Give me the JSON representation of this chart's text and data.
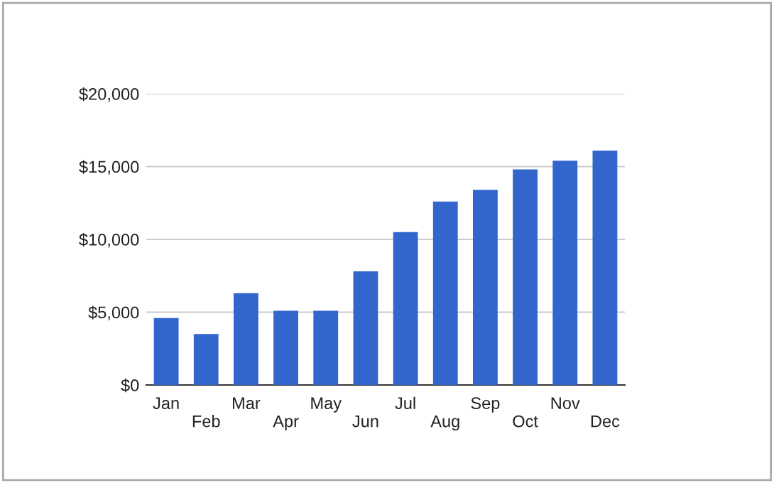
{
  "chart_data": {
    "type": "bar",
    "categories": [
      "Jan",
      "Feb",
      "Mar",
      "Apr",
      "May",
      "Jun",
      "Jul",
      "Aug",
      "Sep",
      "Oct",
      "Nov",
      "Dec"
    ],
    "series": [
      {
        "color": "#3366cc",
        "values": [
          4600,
          3500,
          6300,
          5100,
          5100,
          7800,
          10500,
          12600,
          13400,
          14800,
          15400,
          16100
        ]
      }
    ],
    "ylim": [
      0,
      20000
    ],
    "yticks": [
      {
        "value": 0,
        "label": "$0"
      },
      {
        "value": 5000,
        "label": "$5,000"
      },
      {
        "value": 10000,
        "label": "$10,000"
      },
      {
        "value": 15000,
        "label": "$15,000"
      },
      {
        "value": 20000,
        "label": "$20,000"
      }
    ],
    "grid": "y"
  }
}
